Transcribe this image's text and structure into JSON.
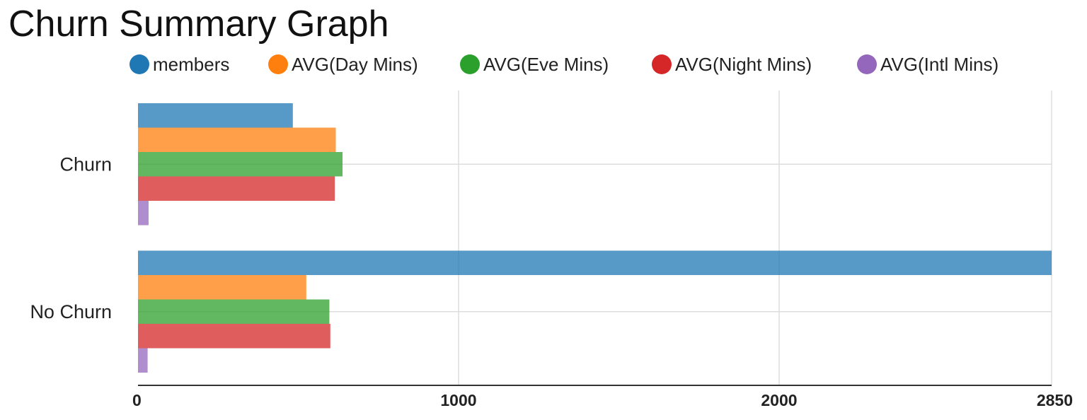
{
  "chart_data": {
    "type": "bar",
    "orientation": "horizontal",
    "title": "Churn Summary Graph",
    "categories": [
      "Churn",
      "No Churn"
    ],
    "series": [
      {
        "name": "members",
        "color": "#1f77b4",
        "values": [
          483,
          2850
        ]
      },
      {
        "name": "AVG(Day Mins)",
        "color": "#ff7f0e",
        "values": [
          617,
          525
        ]
      },
      {
        "name": "AVG(Eve Mins)",
        "color": "#2ca02c",
        "values": [
          638,
          597
        ]
      },
      {
        "name": "AVG(Night Mins)",
        "color": "#d62728",
        "values": [
          614,
          600
        ]
      },
      {
        "name": "AVG(Intl Mins)",
        "color": "#9467bd",
        "values": [
          33,
          30
        ]
      }
    ],
    "xlim": [
      0,
      2850
    ],
    "x_ticks": [
      "0",
      "1000",
      "2000",
      "2850"
    ],
    "x_tick_values": [
      0,
      1000,
      2000,
      2850
    ],
    "grid": true,
    "legend_position": "top"
  }
}
